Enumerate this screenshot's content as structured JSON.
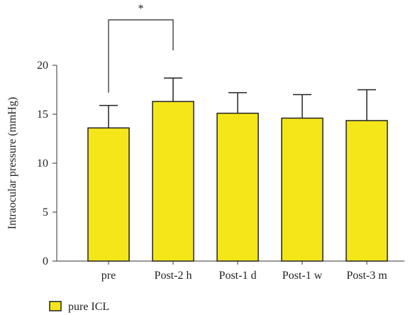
{
  "chart_data": {
    "type": "bar",
    "title": "",
    "xlabel": "",
    "ylabel": "Intraocular pressure (mmHg)",
    "ylim": [
      0,
      20
    ],
    "yticks": [
      0,
      5,
      10,
      15,
      20
    ],
    "categories": [
      "pre",
      "Post-2 h",
      "Post-1 d",
      "Post-1 w",
      "Post-3 m"
    ],
    "series": [
      {
        "name": "pure ICL",
        "color": "#f5e61a",
        "values": [
          13.6,
          16.3,
          15.1,
          14.6,
          14.35
        ],
        "error_upper": [
          15.9,
          18.7,
          17.2,
          17.0,
          17.5
        ]
      }
    ],
    "significance": {
      "from_category": "pre",
      "to_category": "Post-2 h",
      "label": "*"
    },
    "legend_position": "bottom-left",
    "grid": false
  }
}
